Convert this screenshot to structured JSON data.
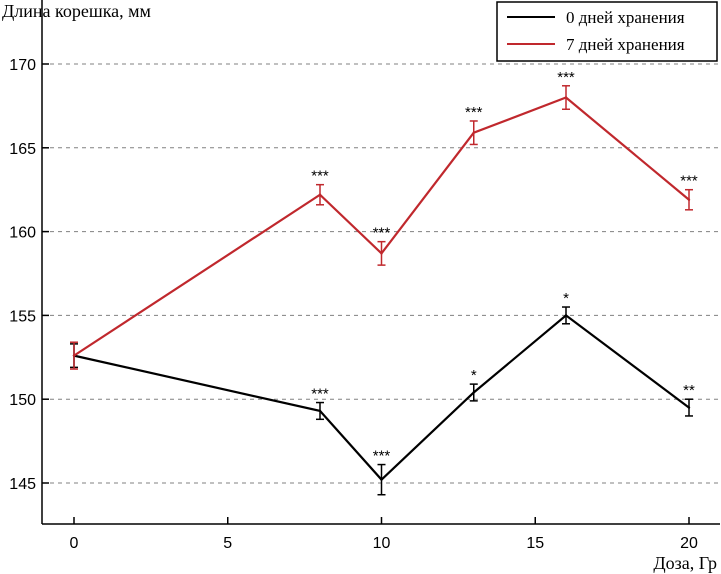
{
  "chart_data": {
    "type": "line",
    "title": "",
    "ylabel": "Длина корешка, мм",
    "xlabel": "Доза, Гр",
    "xlim": [
      -1,
      21
    ],
    "ylim": [
      142,
      173
    ],
    "xticks": [
      0,
      5,
      10,
      15,
      20
    ],
    "xtick_labels": [
      "0",
      "5",
      "10",
      "15",
      "20"
    ],
    "yticks": [
      145,
      150,
      155,
      160,
      165,
      170
    ],
    "ytick_labels": [
      "145",
      "150",
      "155",
      "160",
      "165",
      "170"
    ],
    "grid": "horizontal dashed",
    "legend_position": "top-right",
    "series": [
      {
        "name": "0 дней хранения",
        "color": "#000000",
        "x": [
          0,
          8,
          10,
          13,
          16,
          20
        ],
        "values": [
          152.6,
          149.3,
          145.2,
          150.4,
          155.0,
          149.5
        ],
        "errors": [
          0.7,
          0.5,
          0.9,
          0.5,
          0.5,
          0.5
        ],
        "significance": [
          "",
          "***",
          "***",
          "*",
          "*",
          "**"
        ]
      },
      {
        "name": "7 дней хранения",
        "color": "#c0282d",
        "x": [
          0,
          8,
          10,
          13,
          16,
          20
        ],
        "values": [
          152.6,
          162.2,
          158.7,
          165.9,
          168.0,
          161.9
        ],
        "errors": [
          0.8,
          0.6,
          0.7,
          0.7,
          0.7,
          0.6
        ],
        "significance": [
          "",
          "***",
          "***",
          "***",
          "***",
          "***"
        ]
      }
    ]
  }
}
